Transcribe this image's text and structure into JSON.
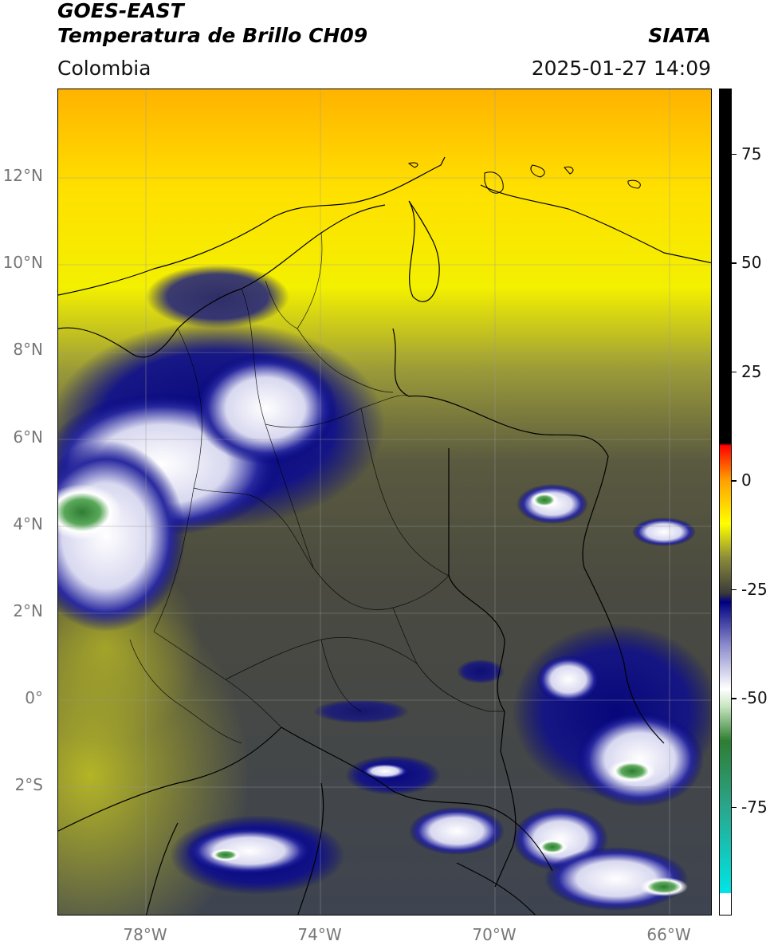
{
  "header": {
    "line1": "GOES-EAST",
    "line2": "Temperatura de Brillo CH09",
    "brand": "SIATA",
    "region": "Colombia",
    "timestamp": "2025-01-27 14:09"
  },
  "axes": {
    "lat_ticks": [
      {
        "value": 12,
        "label": "12°N"
      },
      {
        "value": 10,
        "label": "10°N"
      },
      {
        "value": 8,
        "label": "8°N"
      },
      {
        "value": 6,
        "label": "6°N"
      },
      {
        "value": 4,
        "label": "4°N"
      },
      {
        "value": 2,
        "label": "2°N"
      },
      {
        "value": 0,
        "label": "0°"
      },
      {
        "value": -2,
        "label": "2°S"
      }
    ],
    "lon_ticks": [
      {
        "value": -78,
        "label": "78°W"
      },
      {
        "value": -74,
        "label": "74°W"
      },
      {
        "value": -70,
        "label": "70°W"
      },
      {
        "value": -66,
        "label": "66°W"
      }
    ],
    "lat_range": [
      -5,
      14
    ],
    "lon_range": [
      -80,
      -65
    ]
  },
  "colorbar": {
    "range": [
      -100,
      90
    ],
    "ticks": [
      {
        "value": 75,
        "label": "75"
      },
      {
        "value": 50,
        "label": "50"
      },
      {
        "value": 25,
        "label": "25"
      },
      {
        "value": 0,
        "label": "0"
      },
      {
        "value": -25,
        "label": "-25"
      },
      {
        "value": -50,
        "label": "-50"
      },
      {
        "value": -75,
        "label": "-75"
      }
    ],
    "stops": [
      {
        "value": -100,
        "color": "#ffffff"
      },
      {
        "value": -95,
        "color": "#ffffff"
      },
      {
        "value": -95,
        "color": "#00e5e5"
      },
      {
        "value": -75,
        "color": "#2aa58a"
      },
      {
        "value": -60,
        "color": "#2e7d32"
      },
      {
        "value": -52,
        "color": "#c8e6c0"
      },
      {
        "value": -48,
        "color": "#ffffff"
      },
      {
        "value": -38,
        "color": "#8c8ccc"
      },
      {
        "value": -28,
        "color": "#000080"
      },
      {
        "value": -26,
        "color": "#3a3a3a"
      },
      {
        "value": -18,
        "color": "#8a8a3a"
      },
      {
        "value": -10,
        "color": "#ffff00"
      },
      {
        "value": 0,
        "color": "#ffa000"
      },
      {
        "value": 8,
        "color": "#ff0000"
      },
      {
        "value": 8.5,
        "color": "#000000"
      },
      {
        "value": 90,
        "color": "#000000"
      }
    ]
  }
}
